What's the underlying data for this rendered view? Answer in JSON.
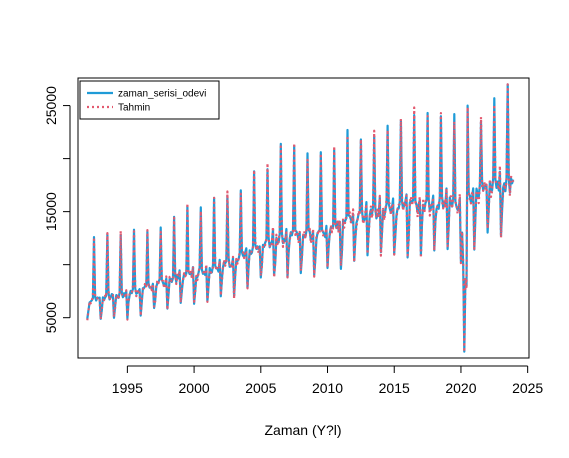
{
  "chart_data": {
    "type": "line",
    "title": "",
    "xlabel": "Zaman (Y?l)",
    "ylabel": "",
    "xlim": [
      1991.3,
      2025.1
    ],
    "ylim": [
      1200,
      27600
    ],
    "x_ticks": [
      1995,
      2000,
      2005,
      2010,
      2015,
      2020,
      2025
    ],
    "x_tick_labels": [
      "1995",
      "2000",
      "2005",
      "2010",
      "2015",
      "2020",
      "2025"
    ],
    "y_ticks": [
      5000,
      10000,
      15000,
      20000,
      25000
    ],
    "y_tick_labels": [
      "5000",
      "",
      "15000",
      "",
      "25000"
    ],
    "grid": false,
    "legend_position": "top-left",
    "frequency": "monthly",
    "start": [
      1992,
      1
    ],
    "end": [
      2023,
      12
    ],
    "series": [
      {
        "name": "zaman_serisi_odevi",
        "color": "#1f9bd7",
        "line_style": "solid",
        "annual": [
          {
            "year": 1992,
            "base": 6600,
            "peak": 12600
          },
          {
            "year": 1993,
            "base": 6800,
            "peak": 12900
          },
          {
            "year": 1994,
            "base": 7000,
            "peak": 12800
          },
          {
            "year": 1995,
            "base": 7200,
            "peak": 13300
          },
          {
            "year": 1996,
            "base": 7600,
            "peak": 13100
          },
          {
            "year": 1997,
            "base": 8000,
            "peak": 13500
          },
          {
            "year": 1998,
            "base": 8400,
            "peak": 14500
          },
          {
            "year": 1999,
            "base": 8800,
            "peak": 15500
          },
          {
            "year": 2000,
            "base": 9100,
            "peak": 15400
          },
          {
            "year": 2001,
            "base": 9400,
            "peak": 16300
          },
          {
            "year": 2002,
            "base": 9800,
            "peak": 16500
          },
          {
            "year": 2003,
            "base": 10300,
            "peak": 17000
          },
          {
            "year": 2004,
            "base": 10900,
            "peak": 18800
          },
          {
            "year": 2005,
            "base": 11600,
            "peak": 19000
          },
          {
            "year": 2006,
            "base": 12300,
            "peak": 21400
          },
          {
            "year": 2007,
            "base": 12600,
            "peak": 21200
          },
          {
            "year": 2008,
            "base": 12800,
            "peak": 20500
          },
          {
            "year": 2009,
            "base": 12700,
            "peak": 20600
          },
          {
            "year": 2010,
            "base": 12900,
            "peak": 20800
          },
          {
            "year": 2011,
            "base": 13600,
            "peak": 22700
          },
          {
            "year": 2012,
            "base": 14300,
            "peak": 21800
          },
          {
            "year": 2013,
            "base": 14700,
            "peak": 22100
          },
          {
            "year": 2014,
            "base": 15000,
            "peak": 23100
          },
          {
            "year": 2015,
            "base": 15300,
            "peak": 23600
          },
          {
            "year": 2016,
            "base": 15400,
            "peak": 24100
          },
          {
            "year": 2017,
            "base": 15500,
            "peak": 24300
          },
          {
            "year": 2018,
            "base": 15700,
            "peak": 24000
          },
          {
            "year": 2019,
            "base": 16000,
            "peak": 24200
          },
          {
            "year": 2020,
            "base": 15000,
            "peak": 25000
          },
          {
            "year": 2021,
            "base": 16800,
            "peak": 23500
          },
          {
            "year": 2022,
            "base": 17200,
            "peak": 25700
          },
          {
            "year": 2023,
            "base": 17500,
            "peak": 27000
          }
        ],
        "notable_points": [
          {
            "x": 1992.0,
            "y": 4900
          },
          {
            "x": 2020.25,
            "y": 1800
          }
        ]
      },
      {
        "name": "Tahmin",
        "color": "#e35a6f",
        "line_style": "dotted",
        "note": "fitted values closely tracking the observed series"
      }
    ]
  }
}
